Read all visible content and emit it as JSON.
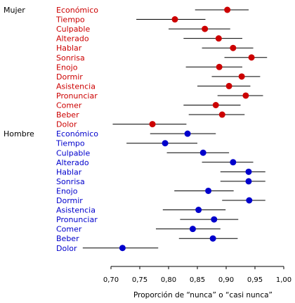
{
  "chart_data": {
    "type": "forest-plot",
    "xlabel": "Proporción de “nunca” o “casi nunca”",
    "xlim": [
      0.7,
      1.0
    ],
    "xticks": [
      0.7,
      0.75,
      0.8,
      0.85,
      0.9,
      0.95,
      1.0
    ],
    "xtick_labels": [
      "0,70",
      "0,75",
      "0,80",
      "0,85",
      "0,90",
      "0,95",
      "1,00"
    ],
    "grid": false,
    "groups": [
      {
        "name": "Mujer",
        "color": "#cc0000",
        "items": [
          {
            "label": "Económico",
            "value": 0.902,
            "low": 0.846,
            "high": 0.939
          },
          {
            "label": "Tiempo",
            "value": 0.811,
            "low": 0.744,
            "high": 0.864
          },
          {
            "label": "Culpable",
            "value": 0.863,
            "low": 0.8,
            "high": 0.907
          },
          {
            "label": "Alterado",
            "value": 0.887,
            "low": 0.826,
            "high": 0.928
          },
          {
            "label": "Hablar",
            "value": 0.912,
            "low": 0.858,
            "high": 0.947
          },
          {
            "label": "Sonrisa",
            "value": 0.944,
            "low": 0.897,
            "high": 0.971
          },
          {
            "label": "Enojo",
            "value": 0.888,
            "low": 0.83,
            "high": 0.928
          },
          {
            "label": "Dormir",
            "value": 0.927,
            "low": 0.875,
            "high": 0.959
          },
          {
            "label": "Asistencia",
            "value": 0.905,
            "low": 0.85,
            "high": 0.942
          },
          {
            "label": "Pronunciar",
            "value": 0.934,
            "low": 0.885,
            "high": 0.964
          },
          {
            "label": "Comer",
            "value": 0.882,
            "low": 0.826,
            "high": 0.925
          },
          {
            "label": "Beber",
            "value": 0.893,
            "low": 0.835,
            "high": 0.932
          },
          {
            "label": "Dolor",
            "value": 0.772,
            "low": 0.703,
            "high": 0.831
          }
        ]
      },
      {
        "name": "Hombre",
        "color": "#0000cc",
        "items": [
          {
            "label": "Económico",
            "value": 0.833,
            "low": 0.768,
            "high": 0.882
          },
          {
            "label": "Tiempo",
            "value": 0.794,
            "low": 0.727,
            "high": 0.85
          },
          {
            "label": "Culpable",
            "value": 0.86,
            "low": 0.797,
            "high": 0.905
          },
          {
            "label": "Alterado",
            "value": 0.912,
            "low": 0.858,
            "high": 0.947
          },
          {
            "label": "Hablar",
            "value": 0.939,
            "low": 0.89,
            "high": 0.968
          },
          {
            "label": "Sonrisa",
            "value": 0.939,
            "low": 0.89,
            "high": 0.968
          },
          {
            "label": "Enojo",
            "value": 0.869,
            "low": 0.81,
            "high": 0.913
          },
          {
            "label": "Dormir",
            "value": 0.94,
            "low": 0.893,
            "high": 0.968
          },
          {
            "label": "Asistencia",
            "value": 0.852,
            "low": 0.79,
            "high": 0.899
          },
          {
            "label": "Pronunciar",
            "value": 0.879,
            "low": 0.82,
            "high": 0.921
          },
          {
            "label": "Comer",
            "value": 0.842,
            "low": 0.778,
            "high": 0.89
          },
          {
            "label": "Beber",
            "value": 0.877,
            "low": 0.818,
            "high": 0.92
          },
          {
            "label": "Dolor",
            "value": 0.72,
            "low": 0.651,
            "high": 0.782
          }
        ]
      }
    ]
  }
}
